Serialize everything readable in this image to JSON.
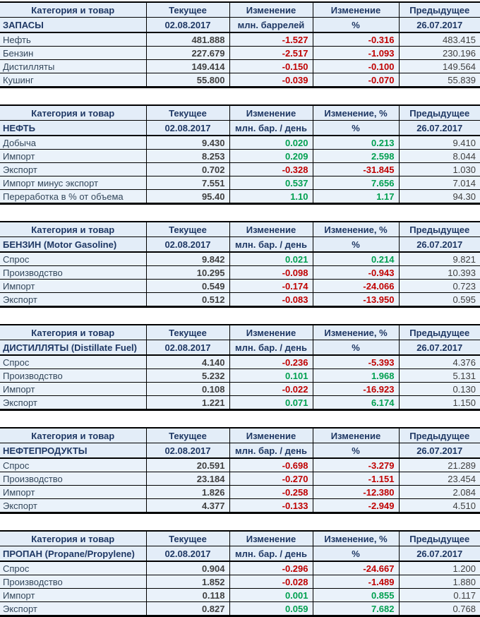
{
  "colors": {
    "positive": "#00A050",
    "negative": "#C00000",
    "header_text": "#1F3864",
    "label_text": "#33475B",
    "value_text": "#404040",
    "row_bg": "#EAF2FA",
    "header_bg": "#E3EDF8",
    "border": "#000000"
  },
  "chart_data": [
    {
      "type": "table",
      "title": "ЗАПАСЫ",
      "columns": [
        "Категория и товар",
        "Текущее",
        "Изменение",
        "Изменение",
        "Предыдущее"
      ],
      "current_date": "02.08.2017",
      "units": "млн. баррелей",
      "percent": "%",
      "previous_date": "26.07.2017",
      "rows": [
        {
          "label": "Нефть",
          "current": "481.888",
          "change": "-1.527",
          "change_pct": "-0.316",
          "previous": "483.415"
        },
        {
          "label": "Бензин",
          "current": "227.679",
          "change": "-2.517",
          "change_pct": "-1.093",
          "previous": "230.196"
        },
        {
          "label": "Дистилляты",
          "current": "149.414",
          "change": "-0.150",
          "change_pct": "-0.100",
          "previous": "149.564"
        },
        {
          "label": "Кушинг",
          "current": "55.800",
          "change": "-0.039",
          "change_pct": "-0.070",
          "previous": "55.839"
        }
      ]
    },
    {
      "type": "table",
      "title": "НЕФТЬ",
      "columns": [
        "Категория и товар",
        "Текущее",
        "Изменение",
        "Изменение, %",
        "Предыдущее"
      ],
      "current_date": "02.08.2017",
      "units": "млн. бар. / день",
      "percent": "%",
      "previous_date": "26.07.2017",
      "rows": [
        {
          "label": "Добыча",
          "current": "9.430",
          "change": "0.020",
          "change_pct": "0.213",
          "previous": "9.410"
        },
        {
          "label": "Импорт",
          "current": "8.253",
          "change": "0.209",
          "change_pct": "2.598",
          "previous": "8.044"
        },
        {
          "label": "Экспорт",
          "current": "0.702",
          "change": "-0.328",
          "change_pct": "-31.845",
          "previous": "1.030"
        },
        {
          "label": "Импорт минус экспорт",
          "current": "7.551",
          "change": "0.537",
          "change_pct": "7.656",
          "previous": "7.014"
        },
        {
          "label": "Переработка в % от объема",
          "current": "95.40",
          "change": "1.10",
          "change_pct": "1.17",
          "previous": "94.30"
        }
      ]
    },
    {
      "type": "table",
      "title": "БЕНЗИН (Motor Gasoline)",
      "columns": [
        "Категория и товар",
        "Текущее",
        "Изменение",
        "Изменение, %",
        "Предыдущее"
      ],
      "current_date": "02.08.2017",
      "units": "млн. бар. / день",
      "percent": "%",
      "previous_date": "26.07.2017",
      "rows": [
        {
          "label": "Спрос",
          "current": "9.842",
          "change": "0.021",
          "change_pct": "0.214",
          "previous": "9.821"
        },
        {
          "label": "Производство",
          "current": "10.295",
          "change": "-0.098",
          "change_pct": "-0.943",
          "previous": "10.393"
        },
        {
          "label": "Импорт",
          "current": "0.549",
          "change": "-0.174",
          "change_pct": "-24.066",
          "previous": "0.723"
        },
        {
          "label": "Экспорт",
          "current": "0.512",
          "change": "-0.083",
          "change_pct": "-13.950",
          "previous": "0.595"
        }
      ]
    },
    {
      "type": "table",
      "title": "ДИСТИЛЛЯТЫ (Distillate Fuel)",
      "columns": [
        "Категория и товар",
        "Текущее",
        "Изменение",
        "Изменение, %",
        "Предыдущее"
      ],
      "current_date": "02.08.2017",
      "units": "млн. бар. / день",
      "percent": "%",
      "previous_date": "26.07.2017",
      "rows": [
        {
          "label": "Спрос",
          "current": "4.140",
          "change": "-0.236",
          "change_pct": "-5.393",
          "previous": "4.376"
        },
        {
          "label": "Производство",
          "current": "5.232",
          "change": "0.101",
          "change_pct": "1.968",
          "previous": "5.131"
        },
        {
          "label": "Импорт",
          "current": "0.108",
          "change": "-0.022",
          "change_pct": "-16.923",
          "previous": "0.130"
        },
        {
          "label": "Экспорт",
          "current": "1.221",
          "change": "0.071",
          "change_pct": "6.174",
          "previous": "1.150"
        }
      ]
    },
    {
      "type": "table",
      "title": "НЕФТЕПРОДУКТЫ",
      "columns": [
        "Категория и товар",
        "Текущее",
        "Изменение",
        "Изменение",
        "Предыдущее"
      ],
      "current_date": "02.08.2017",
      "units": "млн. бар. / день",
      "percent": "%",
      "previous_date": "26.07.2017",
      "rows": [
        {
          "label": "Спрос",
          "current": "20.591",
          "change": "-0.698",
          "change_pct": "-3.279",
          "previous": "21.289"
        },
        {
          "label": "Производство",
          "current": "23.184",
          "change": "-0.270",
          "change_pct": "-1.151",
          "previous": "23.454"
        },
        {
          "label": "Импорт",
          "current": "1.826",
          "change": "-0.258",
          "change_pct": "-12.380",
          "previous": "2.084"
        },
        {
          "label": "Экспорт",
          "current": "4.377",
          "change": "-0.133",
          "change_pct": "-2.949",
          "previous": "4.510"
        }
      ]
    },
    {
      "type": "table",
      "title": "ПРОПАН (Propane/Propylene)",
      "columns": [
        "Категория и товар",
        "Текущее",
        "Изменение",
        "Изменение, %",
        "Предыдущее"
      ],
      "current_date": "02.08.2017",
      "units": "млн. бар. / день",
      "percent": "%",
      "previous_date": "26.07.2017",
      "rows": [
        {
          "label": "Спрос",
          "current": "0.904",
          "change": "-0.296",
          "change_pct": "-24.667",
          "previous": "1.200"
        },
        {
          "label": "Производство",
          "current": "1.852",
          "change": "-0.028",
          "change_pct": "-1.489",
          "previous": "1.880"
        },
        {
          "label": "Импорт",
          "current": "0.118",
          "change": "0.001",
          "change_pct": "0.855",
          "previous": "0.117"
        },
        {
          "label": "Экспорт",
          "current": "0.827",
          "change": "0.059",
          "change_pct": "7.682",
          "previous": "0.768"
        }
      ]
    }
  ]
}
